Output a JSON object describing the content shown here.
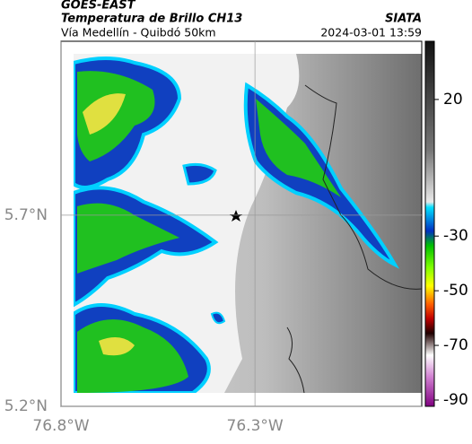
{
  "header": {
    "source": "GOES-EAST",
    "title": "Temperatura de Brillo CH13",
    "brand": "SIATA",
    "subtitle": "Vía Medellín - Quibdó 50km",
    "timestamp": "2024-03-01 13:59"
  },
  "map": {
    "xlim": [
      -76.8,
      -75.87
    ],
    "ylim": [
      5.2,
      6.155
    ],
    "xticks": [
      {
        "value": -76.8,
        "label": "76.8°W"
      },
      {
        "value": -76.3,
        "label": "76.3°W"
      }
    ],
    "yticks": [
      {
        "value": 5.2,
        "label": "5.2°N"
      },
      {
        "value": 5.7,
        "label": "5.7°N"
      }
    ],
    "grid": true
  },
  "colorbar": {
    "lim": [
      -92.3,
      41.3
    ],
    "ticks": [
      20,
      -30,
      -50,
      -70,
      -90
    ]
  }
}
